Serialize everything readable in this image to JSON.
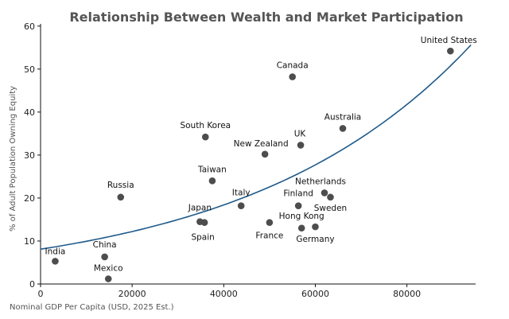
{
  "chart_data": {
    "type": "scatter",
    "title": "Relationship Between Wealth and Market Participation",
    "xlabel": "Nominal GDP Per Capita (USD, 2025 Est.)",
    "ylabel": "% of Adult Population Owning Equity",
    "xlim": [
      0,
      95000
    ],
    "ylim": [
      0,
      62
    ],
    "x_ticks": [
      0,
      20000,
      40000,
      60000,
      80000
    ],
    "y_ticks": [
      0,
      10,
      20,
      30,
      40,
      50,
      60
    ],
    "grid": false,
    "series": [
      {
        "points": [
          {
            "label": "India",
            "x": 3200,
            "y": 5.3
          },
          {
            "label": "China",
            "x": 14000,
            "y": 6.3
          },
          {
            "label": "Mexico",
            "x": 14800,
            "y": 1.2
          },
          {
            "label": "Russia",
            "x": 17500,
            "y": 20.2
          },
          {
            "label": "Japan",
            "x": 34800,
            "y": 14.5
          },
          {
            "label": "Spain",
            "x": 35800,
            "y": 14.3
          },
          {
            "label": "South Korea",
            "x": 36000,
            "y": 34.2
          },
          {
            "label": "Taiwan",
            "x": 37500,
            "y": 24.0
          },
          {
            "label": "Italy",
            "x": 43800,
            "y": 18.2
          },
          {
            "label": "New Zealand",
            "x": 49000,
            "y": 30.2
          },
          {
            "label": "France",
            "x": 50000,
            "y": 14.3
          },
          {
            "label": "Canada",
            "x": 55000,
            "y": 48.2
          },
          {
            "label": "Finland",
            "x": 56300,
            "y": 18.2
          },
          {
            "label": "UK",
            "x": 56800,
            "y": 32.3
          },
          {
            "label": "Hong Kong",
            "x": 57000,
            "y": 13.0
          },
          {
            "label": "Germany",
            "x": 60000,
            "y": 13.3
          },
          {
            "label": "Netherlands",
            "x": 62000,
            "y": 21.2
          },
          {
            "label": "Sweden",
            "x": 63300,
            "y": 20.2
          },
          {
            "label": "Australia",
            "x": 66000,
            "y": 36.2
          },
          {
            "label": "United States",
            "x": 89500,
            "y": 54.2
          }
        ]
      }
    ],
    "trendline": {
      "type": "exponential",
      "a": 8.1,
      "b": 2.05e-05
    }
  },
  "colors": {
    "point": "#4d4d4d",
    "trendline": "#1f5a8a",
    "axis": "#111111",
    "title": "#555555"
  }
}
